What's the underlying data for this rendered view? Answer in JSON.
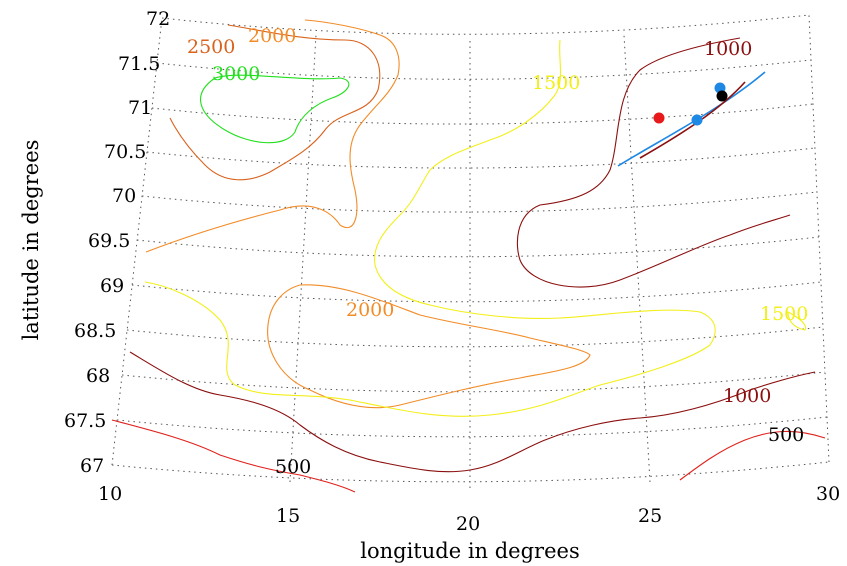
{
  "map": {
    "projection": "conic",
    "x_axis_label": "longitude in degrees",
    "y_axis_label": "latitude in degrees",
    "lon_ticks": [
      "10",
      "15",
      "20",
      "25",
      "30"
    ],
    "lat_ticks": [
      "67",
      "67.5",
      "68",
      "68.5",
      "69",
      "69.5",
      "70",
      "70.5",
      "71",
      "71.5",
      "72"
    ],
    "grid": "dotted",
    "contour_levels": [
      {
        "value": "500",
        "color": "#e0201b"
      },
      {
        "value": "1000",
        "color": "#8b0f0f"
      },
      {
        "value": "1500",
        "color": "#f2ef1a"
      },
      {
        "value": "2000",
        "color": "#f28c28"
      },
      {
        "value": "2500",
        "color": "#d9621c"
      },
      {
        "value": "3000",
        "color": "#22e01e"
      }
    ],
    "contour_labels": [
      {
        "text": "2000",
        "color": "#f28c28"
      },
      {
        "text": "2500",
        "color": "#d9621c"
      },
      {
        "text": "3000",
        "color": "#22e01e"
      },
      {
        "text": "1500",
        "color": "#f2ef1a"
      },
      {
        "text": "1000",
        "color": "#8b0f0f"
      },
      {
        "text": "2000",
        "color": "#f28c28"
      },
      {
        "text": "1500",
        "color": "#f2ef1a"
      },
      {
        "text": "1000",
        "color": "#8b0f0f"
      },
      {
        "text": "500",
        "color": "#000000"
      },
      {
        "text": "500",
        "color": "#000000"
      }
    ],
    "markers": [
      {
        "lon": 25.4,
        "lat": 71.0,
        "color": "#e8191b"
      },
      {
        "lon": 26.3,
        "lat": 70.95,
        "color": "#1e88e5"
      },
      {
        "lon": 26.8,
        "lat": 71.35,
        "color": "#1e88e5"
      },
      {
        "lon": 26.9,
        "lat": 71.25,
        "color": "#000000"
      }
    ],
    "track_colors": {
      "line_a": "#1e88e5",
      "line_b": "#8b0f0f"
    }
  }
}
